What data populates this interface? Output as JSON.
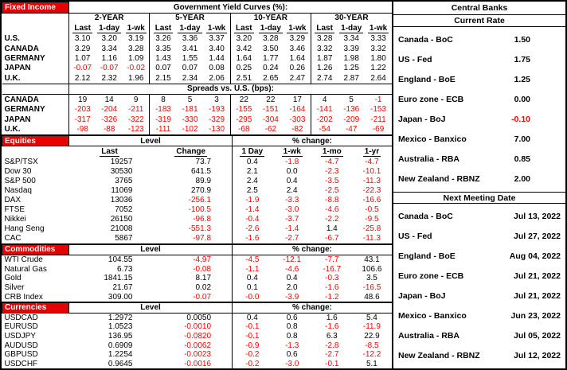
{
  "colors": {
    "accent_red": "#e60000",
    "negative": "#ff0000"
  },
  "fixed_income": {
    "section_label": "Fixed Income",
    "title": "Government Yield Curves (%):",
    "maturities": [
      "2-YEAR",
      "5-YEAR",
      "10-YEAR",
      "30-YEAR"
    ],
    "sub_headers": [
      "Last",
      "1-day",
      "1-wk"
    ],
    "yields": [
      {
        "name": "U.S.",
        "values": [
          "3.10",
          "3.20",
          "3.19",
          "3.26",
          "3.36",
          "3.37",
          "3.20",
          "3.28",
          "3.29",
          "3.28",
          "3.34",
          "3.33"
        ]
      },
      {
        "name": "CANADA",
        "values": [
          "3.29",
          "3.34",
          "3.28",
          "3.35",
          "3.41",
          "3.40",
          "3.42",
          "3.50",
          "3.46",
          "3.32",
          "3.39",
          "3.32"
        ]
      },
      {
        "name": "GERMANY",
        "values": [
          "1.07",
          "1.16",
          "1.09",
          "1.43",
          "1.55",
          "1.44",
          "1.64",
          "1.77",
          "1.64",
          "1.87",
          "1.98",
          "1.80"
        ]
      },
      {
        "name": "JAPAN",
        "values": [
          "-0.07",
          "-0.07",
          "-0.02",
          "0.07",
          "0.07",
          "0.08",
          "0.25",
          "0.24",
          "0.26",
          "1.26",
          "1.25",
          "1.22"
        ]
      },
      {
        "name": "U.K.",
        "values": [
          "2.12",
          "2.32",
          "1.96",
          "2.15",
          "2.34",
          "2.06",
          "2.51",
          "2.65",
          "2.47",
          "2.74",
          "2.87",
          "2.64"
        ]
      }
    ],
    "spreads_title": "Spreads vs. U.S. (bps):",
    "spreads": [
      {
        "name": "CANADA",
        "values": [
          "19",
          "14",
          "9",
          "8",
          "5",
          "3",
          "22",
          "22",
          "17",
          "4",
          "5",
          "-1"
        ]
      },
      {
        "name": "GERMANY",
        "values": [
          "-203",
          "-204",
          "-211",
          "-183",
          "-181",
          "-193",
          "-155",
          "-151",
          "-164",
          "-141",
          "-136",
          "-153"
        ]
      },
      {
        "name": "JAPAN",
        "values": [
          "-317",
          "-326",
          "-322",
          "-319",
          "-330",
          "-329",
          "-295",
          "-304",
          "-303",
          "-202",
          "-209",
          "-211"
        ]
      },
      {
        "name": "U.K.",
        "values": [
          "-98",
          "-88",
          "-123",
          "-111",
          "-102",
          "-130",
          "-68",
          "-62",
          "-82",
          "-54",
          "-47",
          "-69"
        ]
      }
    ]
  },
  "equities": {
    "section_label": "Equities",
    "level_header": "Level",
    "pct_header": "% change:",
    "sub_headers": [
      "Last",
      "Change",
      "1 Day",
      "1-wk",
      "1-mo",
      "1-yr"
    ],
    "rows": [
      {
        "name": "S&P/TSX",
        "last": "19257",
        "change": "73.7",
        "pct": [
          "0.4",
          "-1.8",
          "-4.7",
          "-4.7"
        ]
      },
      {
        "name": "Dow 30",
        "last": "30530",
        "change": "641.5",
        "pct": [
          "2.1",
          "0.0",
          "-2.3",
          "-10.1"
        ]
      },
      {
        "name": "S&P 500",
        "last": "3765",
        "change": "89.9",
        "pct": [
          "2.4",
          "0.4",
          "-3.5",
          "-11.3"
        ]
      },
      {
        "name": "Nasdaq",
        "last": "11069",
        "change": "270.9",
        "pct": [
          "2.5",
          "2.4",
          "-2.5",
          "-22.3"
        ]
      },
      {
        "name": "DAX",
        "last": "13036",
        "change": "-256.1",
        "pct": [
          "-1.9",
          "-3.3",
          "-8.8",
          "-16.6"
        ]
      },
      {
        "name": "FTSE",
        "last": "7052",
        "change": "-100.5",
        "pct": [
          "-1.4",
          "-3.0",
          "-4.6",
          "-0.5"
        ]
      },
      {
        "name": "Nikkei",
        "last": "26150",
        "change": "-96.8",
        "pct": [
          "-0.4",
          "-3.7",
          "-2.2",
          "-9.5"
        ]
      },
      {
        "name": "Hang Seng",
        "last": "21008",
        "change": "-551.3",
        "pct": [
          "-2.6",
          "-1.4",
          "1.4",
          "-25.8"
        ]
      },
      {
        "name": "CAC",
        "last": "5867",
        "change": "-97.8",
        "pct": [
          "-1.6",
          "-2.7",
          "-6.7",
          "-11.3"
        ]
      }
    ]
  },
  "commodities": {
    "section_label": "Commodities",
    "level_header": "Level",
    "pct_header": "% change:",
    "rows": [
      {
        "name": "WTI Crude",
        "last": "104.55",
        "change": "-4.97",
        "pct": [
          "-4.5",
          "-12.1",
          "-7.7",
          "43.1"
        ]
      },
      {
        "name": "Natural Gas",
        "last": "6.73",
        "change": "-0.08",
        "pct": [
          "-1.1",
          "-4.6",
          "-16.7",
          "106.6"
        ]
      },
      {
        "name": "Gold",
        "last": "1841.15",
        "change": "8.17",
        "pct": [
          "0.4",
          "0.4",
          "-0.3",
          "3.5"
        ]
      },
      {
        "name": "Silver",
        "last": "21.67",
        "change": "0.02",
        "pct": [
          "0.1",
          "2.0",
          "-1.6",
          "-16.5"
        ]
      },
      {
        "name": "CRB Index",
        "last": "309.00",
        "change": "-0.07",
        "pct": [
          "-0.0",
          "-3.9",
          "-1.2",
          "48.6"
        ]
      }
    ]
  },
  "currencies": {
    "section_label": "Currencies",
    "level_header": "Level",
    "pct_header": "% change:",
    "rows": [
      {
        "name": "USDCAD",
        "last": "1.2972",
        "change": "0.0050",
        "pct": [
          "0.4",
          "0.6",
          "1.6",
          "5.4"
        ]
      },
      {
        "name": "EURUSD",
        "last": "1.0523",
        "change": "-0.0010",
        "pct": [
          "-0.1",
          "0.8",
          "-1.6",
          "-11.9"
        ]
      },
      {
        "name": "USDJPY",
        "last": "136.95",
        "change": "-0.0820",
        "pct": [
          "-0.1",
          "0.8",
          "6.3",
          "22.9"
        ]
      },
      {
        "name": "AUDUSD",
        "last": "0.6909",
        "change": "-0.0062",
        "pct": [
          "-0.9",
          "-1.3",
          "-2.8",
          "-8.5"
        ]
      },
      {
        "name": "GBPUSD",
        "last": "1.2254",
        "change": "-0.0023",
        "pct": [
          "-0.2",
          "0.6",
          "-2.7",
          "-12.2"
        ]
      },
      {
        "name": "USDCHF",
        "last": "0.9645",
        "change": "-0.0016",
        "pct": [
          "-0.2",
          "-3.0",
          "-0.1",
          "5.1"
        ]
      }
    ]
  },
  "central_banks": {
    "title": "Central Banks",
    "current_rate_title": "Current Rate",
    "rates": [
      {
        "name": "Canada - BoC",
        "value": "1.50"
      },
      {
        "name": "US - Fed",
        "value": "1.75"
      },
      {
        "name": "England - BoE",
        "value": "1.25"
      },
      {
        "name": "Euro zone - ECB",
        "value": "0.00"
      },
      {
        "name": "Japan - BoJ",
        "value": "-0.10"
      },
      {
        "name": "Mexico - Banxico",
        "value": "7.00"
      },
      {
        "name": "Australia - RBA",
        "value": "0.85"
      },
      {
        "name": "New Zealand - RBNZ",
        "value": "2.00"
      }
    ],
    "next_meeting_title": "Next Meeting Date",
    "meetings": [
      {
        "name": "Canada - BoC",
        "value": "Jul 13, 2022"
      },
      {
        "name": "US - Fed",
        "value": "Jul 27, 2022"
      },
      {
        "name": "England - BoE",
        "value": "Aug 04, 2022"
      },
      {
        "name": "Euro zone - ECB",
        "value": "Jul 21, 2022"
      },
      {
        "name": "Japan - BoJ",
        "value": "Jul 21, 2022"
      },
      {
        "name": "Mexico - Banxico",
        "value": "Jun 23, 2022"
      },
      {
        "name": "Australia - RBA",
        "value": "Jul 05, 2022"
      },
      {
        "name": "New Zealand - RBNZ",
        "value": "Jul 12, 2022"
      }
    ]
  }
}
